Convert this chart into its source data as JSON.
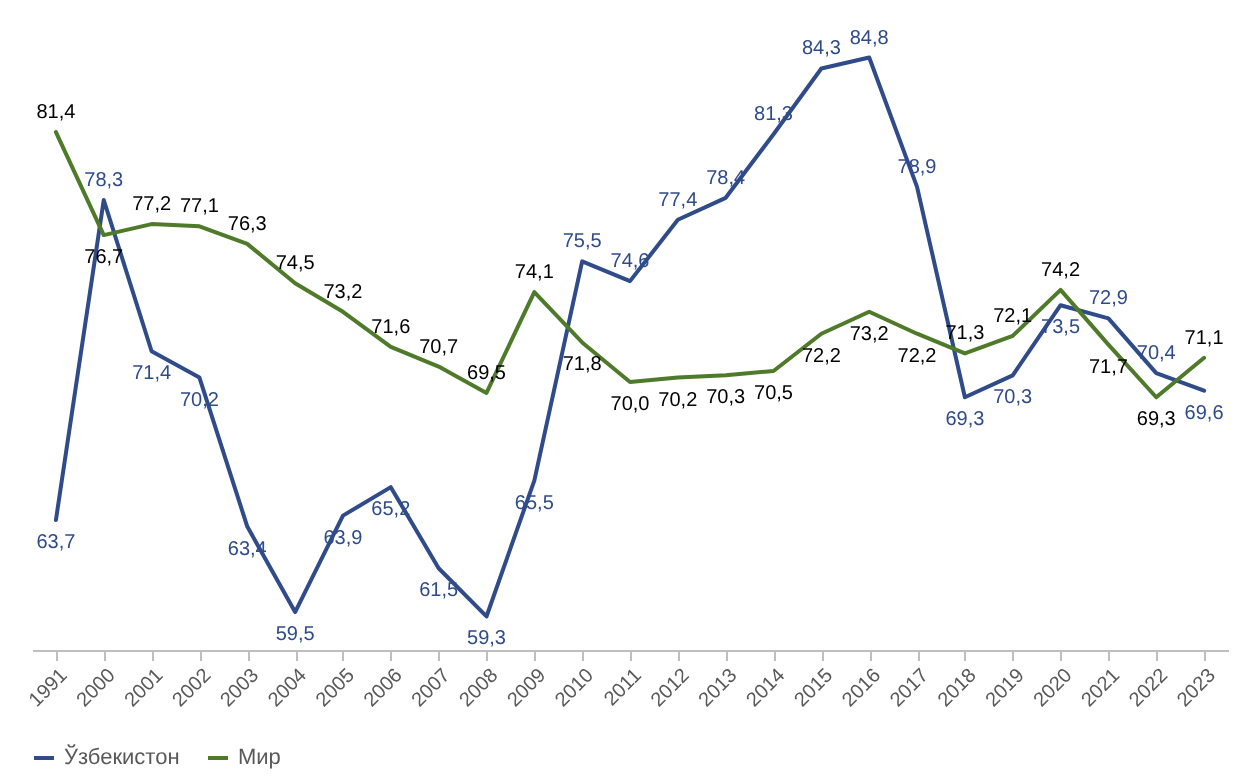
{
  "chart_data": {
    "type": "line",
    "categories": [
      "1991",
      "2000",
      "2001",
      "2002",
      "2003",
      "2004",
      "2005",
      "2006",
      "2007",
      "2008",
      "2009",
      "2010",
      "2011",
      "2012",
      "2013",
      "2014",
      "2015",
      "2016",
      "2017",
      "2018",
      "2019",
      "2020",
      "2021",
      "2022",
      "2023"
    ],
    "series": [
      {
        "name": "Ўзбекистон",
        "color": "#2f4b8a",
        "values": [
          63.7,
          78.3,
          71.4,
          70.2,
          63.4,
          59.5,
          63.9,
          65.2,
          61.5,
          59.3,
          65.5,
          75.5,
          74.6,
          77.4,
          78.4,
          81.3,
          84.3,
          84.8,
          78.9,
          69.3,
          70.3,
          73.5,
          72.9,
          70.4,
          69.6
        ],
        "value_labels": [
          "63,7",
          "78,3",
          "71,4",
          "70,2",
          "63,4",
          "59,5",
          "63,9",
          "65,2",
          "61,5",
          "59,3",
          "65,5",
          "75,5",
          "74,6",
          "77,4",
          "78,4",
          "81,3",
          "84,3",
          "84,8",
          "78,9",
          "69,3",
          "70,3",
          "73,5",
          "72,9",
          "70,4",
          "69,6"
        ]
      },
      {
        "name": "Мир",
        "color": "#4e7a2a",
        "values": [
          81.4,
          76.7,
          77.2,
          77.1,
          76.3,
          74.5,
          73.2,
          71.6,
          70.7,
          69.5,
          74.1,
          71.8,
          70.0,
          70.2,
          70.3,
          70.5,
          72.2,
          73.2,
          72.2,
          71.3,
          72.1,
          74.2,
          71.7,
          69.3,
          71.1
        ],
        "value_labels": [
          "81,4",
          "76,7",
          "77,2",
          "77,1",
          "76,3",
          "74,5",
          "73,2",
          "71,6",
          "70,7",
          "69,5",
          "74,1",
          "71,8",
          "70,0",
          "70,2",
          "70,3",
          "70,5",
          "72,2",
          "73,2",
          "72,2",
          "71,3",
          "72,1",
          "74,2",
          "71,7",
          "69,3",
          "71,1"
        ]
      }
    ],
    "legend": "bottom",
    "marker": "none",
    "line_style": "solid"
  }
}
